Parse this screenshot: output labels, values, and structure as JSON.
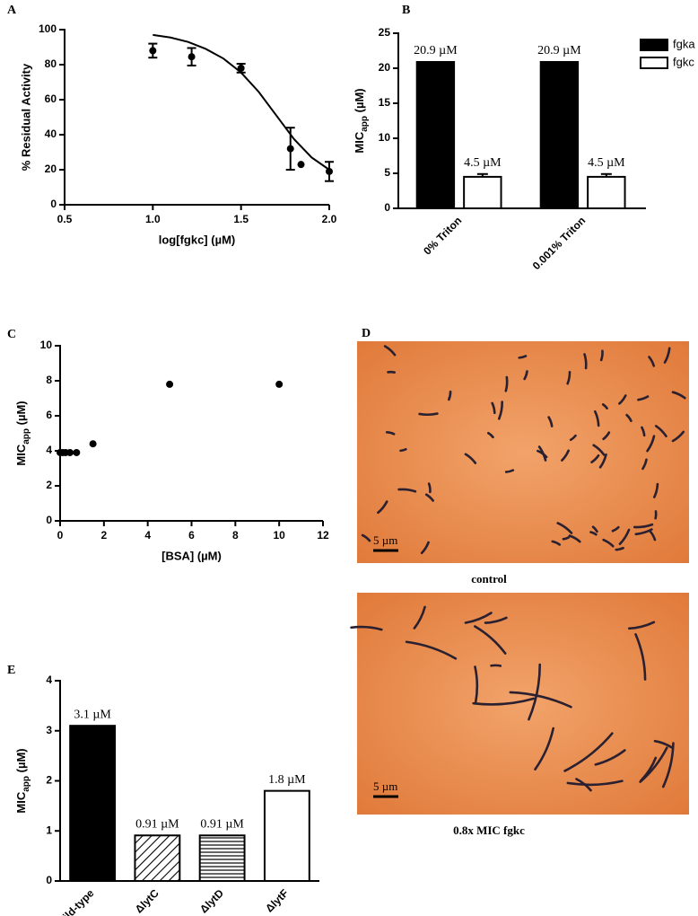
{
  "chart_data": [
    {
      "type": "scatter",
      "panel": "A",
      "xlabel": "log[fgkc] (µM)",
      "ylabel": "% Residual Activity",
      "x": [
        1.0,
        1.22,
        1.5,
        1.78,
        1.84,
        2.0
      ],
      "values": [
        88,
        84.5,
        78,
        32,
        23,
        19
      ],
      "errors": [
        4,
        5,
        2.5,
        12,
        null,
        5.5
      ],
      "fit": {
        "x": [
          1.0,
          1.1,
          1.2,
          1.3,
          1.4,
          1.5,
          1.6,
          1.7,
          1.8,
          1.9,
          2.0
        ],
        "values": [
          97,
          95.5,
          93,
          89,
          83.5,
          75.5,
          64.5,
          51,
          37.5,
          27,
          20
        ]
      },
      "color": "#000000",
      "xlim": [
        0.5,
        2.0
      ],
      "xticks": [
        0.5,
        {
          "value": 1,
          "label": "1.0"
        },
        1.5,
        {
          "value": 2,
          "label": "2.0"
        }
      ],
      "ylim": [
        0,
        100
      ],
      "yticks": [
        0,
        20,
        40,
        60,
        80,
        100
      ]
    },
    {
      "type": "bar",
      "panel": "B",
      "ylabel": {
        "text": "MIC",
        "sub": "app",
        "unit": " (µM)"
      },
      "categories": [
        "0% Triton",
        "0.001% Triton"
      ],
      "series": [
        {
          "name": "fgka",
          "color": "#000000",
          "values": [
            20.9,
            20.9
          ],
          "value_labels": [
            "20.9 µM",
            "20.9 µM"
          ]
        },
        {
          "name": "fgkc",
          "color": "#ffffff",
          "values": [
            4.5,
            4.5
          ],
          "errors": [
            0.4,
            0.4
          ],
          "value_labels": [
            "4.5 µM",
            "4.5 µM"
          ]
        }
      ],
      "legend": "top-right",
      "ylim": [
        0,
        25
      ],
      "yticks": [
        0,
        5,
        10,
        15,
        20,
        25
      ]
    },
    {
      "type": "scatter",
      "panel": "C",
      "xlabel": "[BSA] (µM)",
      "ylabel": {
        "text": "MIC",
        "sub": "app",
        "unit": " (µM)"
      },
      "x": [
        0,
        0.12,
        0.25,
        0.45,
        0.75,
        1.5,
        5,
        10
      ],
      "values": [
        3.9,
        3.9,
        3.9,
        3.9,
        3.9,
        4.4,
        7.8,
        7.8
      ],
      "color": "#000000",
      "xlim": [
        0,
        12
      ],
      "xticks": [
        0,
        2,
        4,
        6,
        8,
        10,
        12
      ],
      "ylim": [
        0,
        10
      ],
      "yticks": [
        0,
        2,
        4,
        6,
        8,
        10
      ]
    },
    {
      "type": "bar",
      "panel": "E",
      "ylabel": {
        "text": "MIC",
        "sub": "app",
        "unit": " (µM)"
      },
      "categories": [
        "wild-type",
        "ΔlytC",
        "ΔlytD",
        "ΔlytF"
      ],
      "values": [
        3.1,
        0.91,
        0.91,
        1.8
      ],
      "value_labels": [
        "3.1 µM",
        "0.91 µM",
        "0.91 µM",
        "1.8 µM"
      ],
      "patterns": [
        "solid",
        "diagonal",
        "horizontal",
        "none"
      ],
      "ylim": [
        0,
        4
      ],
      "yticks": [
        0,
        1,
        2,
        3,
        4
      ]
    }
  ],
  "micrographs": {
    "panel": "D",
    "images": [
      {
        "scale_bar": "5 µm",
        "caption": "control"
      },
      {
        "scale_bar": "5 µm",
        "caption": "0.8x MIC fgkc"
      }
    ]
  }
}
